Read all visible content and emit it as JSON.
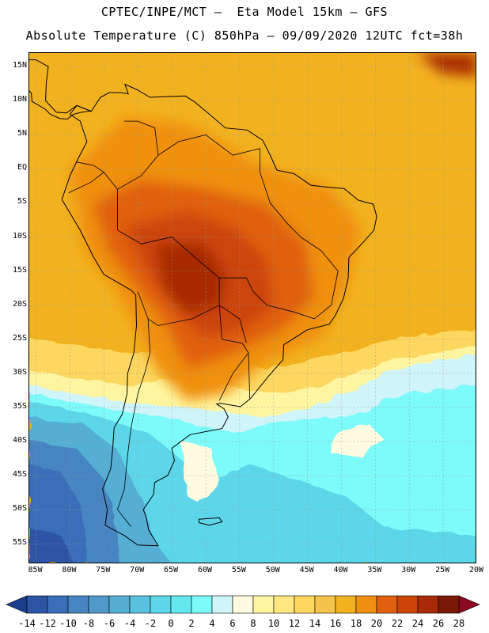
{
  "header": {
    "line1": "CPTEC/INPE/MCT –  Eta Model 15km – GFS",
    "line2": "Absolute Temperature (C) 850hPa – 09/09/2020 12UTC fct=38h"
  },
  "map": {
    "lat_labels": [
      "15N",
      "10N",
      "5N",
      "EQ",
      "5S",
      "10S",
      "15S",
      "20S",
      "25S",
      "30S",
      "35S",
      "40S",
      "45S",
      "50S",
      "55S"
    ],
    "lon_labels": [
      "85W",
      "80W",
      "75W",
      "70W",
      "65W",
      "60W",
      "55W",
      "50W",
      "45W",
      "40W",
      "35W",
      "30W",
      "25W",
      "20W"
    ],
    "lon_range": [
      -86,
      -20
    ],
    "lat_range": [
      -58,
      17
    ],
    "grid": "on (dotted)"
  },
  "colorbar": {
    "labels": [
      "-14",
      "-12",
      "-10",
      "-8",
      "-6",
      "-4",
      "-2",
      "0",
      "2",
      "4",
      "6",
      "8",
      "10",
      "12",
      "14",
      "16",
      "18",
      "20",
      "22",
      "24",
      "26",
      "28"
    ],
    "colors": [
      "#1a3e8c",
      "#2d55a5",
      "#3b6eb8",
      "#4684c2",
      "#4f9acb",
      "#55aed4",
      "#58c2de",
      "#5cd6e8",
      "#63e8f0",
      "#7dfafa",
      "#cff5fa",
      "#fffbe0",
      "#fff5a0",
      "#ffe880",
      "#fdd760",
      "#f6c44a",
      "#f2b220",
      "#f09010",
      "#e06010",
      "#cc4408",
      "#a82a06",
      "#7a1a08",
      "#8b0a20"
    ]
  }
}
